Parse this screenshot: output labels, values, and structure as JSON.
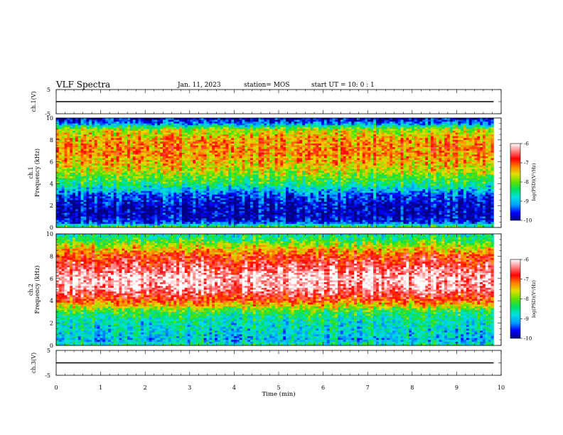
{
  "header": {
    "title": "VLF Spectra",
    "date": "Jan. 11, 2023",
    "station": "station= MOS",
    "start": "start  UT =   10: 0  : 1"
  },
  "chart_data": [
    {
      "type": "line",
      "panel": "ch1-waveform",
      "ylabel": "ch.1(V)",
      "ylim": [
        -5,
        5
      ],
      "yticks": [
        "5",
        "-5"
      ],
      "x": [
        0,
        9.83
      ],
      "y": [
        0,
        0
      ]
    },
    {
      "type": "heatmap",
      "panel": "ch1-spectrogram",
      "ylabel": "ch.1\nFrequency (kHz)",
      "ylim": [
        0,
        10
      ],
      "yticks": [
        "0",
        "2",
        "4",
        "6",
        "8",
        "10"
      ],
      "colorbar": {
        "label": "log(PSD)(V²/Hz)",
        "ticks": [
          "-6",
          "-7",
          "-8",
          "-9",
          "-10"
        ],
        "range": [
          -10,
          -6
        ]
      },
      "description_profile": {
        "freq_kHz": [
          0,
          0.5,
          1,
          2,
          3,
          4,
          5,
          6,
          7,
          8,
          9,
          9.5,
          10
        ],
        "logpsd": [
          -8.0,
          -9.6,
          -9.8,
          -9.8,
          -9.4,
          -8.4,
          -7.8,
          -7.4,
          -7.2,
          -7.3,
          -7.8,
          -9.3,
          -9.8
        ]
      }
    },
    {
      "type": "heatmap",
      "panel": "ch2-spectrogram",
      "ylabel": "ch.2\nFrequency (kHz)",
      "ylim": [
        0,
        10
      ],
      "yticks": [
        "0",
        "2",
        "4",
        "6",
        "8",
        "10"
      ],
      "colorbar": {
        "label": "log(PSD)(V²/Hz)",
        "ticks": [
          "-6",
          "-7",
          "-8",
          "-9",
          "-10"
        ],
        "range": [
          -10,
          -6
        ]
      },
      "description_profile": {
        "freq_kHz": [
          0,
          0.5,
          1,
          2,
          3,
          4,
          5,
          6,
          7,
          8,
          9,
          9.5,
          10
        ],
        "logpsd": [
          -8.5,
          -9.0,
          -8.8,
          -8.7,
          -8.3,
          -7.0,
          -6.3,
          -6.1,
          -6.5,
          -6.9,
          -7.8,
          -8.3,
          -8.6
        ]
      }
    },
    {
      "type": "line",
      "panel": "ch3-waveform",
      "ylabel": "ch.3(V)",
      "ylim": [
        -5,
        5
      ],
      "yticks": [
        "5",
        "-5"
      ],
      "x": [
        0,
        9.83
      ],
      "y": [
        0,
        0
      ]
    }
  ],
  "xaxis": {
    "label": "Time (min)",
    "range": [
      0,
      10
    ],
    "ticks": [
      "0",
      "1",
      "2",
      "3",
      "4",
      "5",
      "6",
      "7",
      "8",
      "9",
      "10"
    ],
    "data_end_min": 9.83
  },
  "colors": {
    "colormap": [
      "#000080",
      "#0000ff",
      "#00a0ff",
      "#00e0e0",
      "#00e060",
      "#60e000",
      "#e0e000",
      "#ff8000",
      "#ff0000",
      "#ff8080",
      "#ffffff"
    ]
  }
}
